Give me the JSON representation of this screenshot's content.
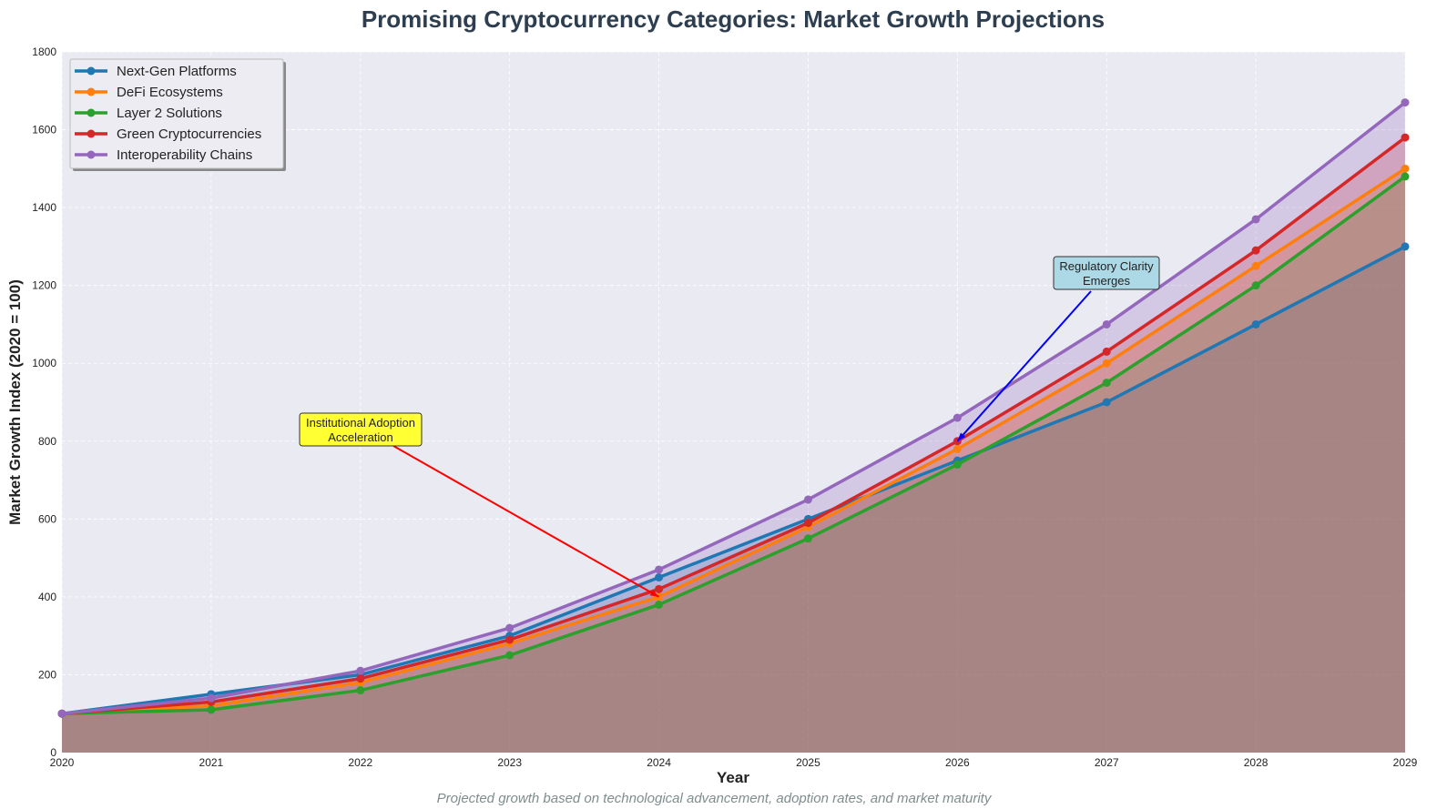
{
  "chart_data": {
    "type": "area",
    "title": "Promising Cryptocurrency Categories: Market Growth Projections",
    "xlabel": "Year",
    "ylabel": "Market Growth Index (2020 = 100)",
    "caption": "Projected growth based on technological advancement, adoption rates, and market maturity",
    "x": [
      2020,
      2021,
      2022,
      2023,
      2024,
      2025,
      2026,
      2027,
      2028,
      2029
    ],
    "xlim": [
      2020,
      2029
    ],
    "ylim": [
      0,
      1800
    ],
    "yticks": [
      0,
      200,
      400,
      600,
      800,
      1000,
      1200,
      1400,
      1600,
      1800
    ],
    "grid": true,
    "legend_position": "top-left",
    "series": [
      {
        "name": "Next-Gen Platforms",
        "color": "#1f77b4",
        "values": [
          100,
          150,
          200,
          300,
          450,
          600,
          750,
          900,
          1100,
          1300
        ]
      },
      {
        "name": "DeFi Ecosystems",
        "color": "#ff7f0e",
        "values": [
          100,
          120,
          180,
          280,
          400,
          580,
          780,
          1000,
          1250,
          1500
        ]
      },
      {
        "name": "Layer 2 Solutions",
        "color": "#2ca02c",
        "values": [
          100,
          110,
          160,
          250,
          380,
          550,
          740,
          950,
          1200,
          1480
        ]
      },
      {
        "name": "Green Cryptocurrencies",
        "color": "#d62728",
        "values": [
          100,
          130,
          190,
          290,
          420,
          590,
          800,
          1030,
          1290,
          1580
        ]
      },
      {
        "name": "Interoperability Chains",
        "color": "#9467bd",
        "values": [
          100,
          140,
          210,
          320,
          470,
          650,
          860,
          1100,
          1370,
          1670
        ]
      }
    ],
    "annotations": [
      {
        "lines": [
          "Institutional Adoption",
          "Acceleration"
        ],
        "point": [
          2024,
          400
        ],
        "box_color": "#ffff33",
        "arrow_color": "#ff0000"
      },
      {
        "lines": [
          "Regulatory Clarity",
          "Emerges"
        ],
        "point": [
          2026,
          800
        ],
        "box_color": "#add8e6",
        "arrow_color": "#0000ff"
      }
    ]
  }
}
